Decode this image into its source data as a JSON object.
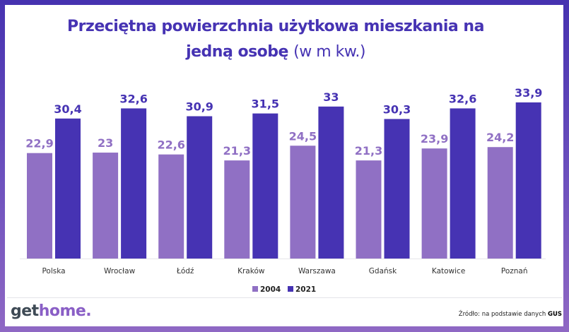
{
  "chart_data": {
    "type": "bar",
    "title": "Przeciętna powierzchnia użytkowa mieszkania na jedną osobę",
    "title_line1": "Przeciętna powierzchnia użytkowa mieszkania na",
    "title_line2": "jedną osobę",
    "title_unit": "(w m kw.)",
    "categories": [
      "Polska",
      "Wrocław",
      "Łódź",
      "Kraków",
      "Warszawa",
      "Gdańsk",
      "Katowice",
      "Poznań"
    ],
    "series": [
      {
        "name": "2004",
        "color": "#9070c4",
        "values": [
          22.9,
          23,
          22.6,
          21.3,
          24.5,
          21.3,
          23.9,
          24.2
        ],
        "labels": [
          "22,9",
          "23",
          "22,6",
          "21,3",
          "24,5",
          "21,3",
          "23,9",
          "24,2"
        ]
      },
      {
        "name": "2021",
        "color": "#4633b3",
        "values": [
          30.4,
          32.6,
          30.9,
          31.5,
          33,
          30.3,
          32.6,
          33.9
        ],
        "labels": [
          "30,4",
          "32,6",
          "30,9",
          "31,5",
          "33",
          "30,3",
          "32,6",
          "33,9"
        ]
      }
    ],
    "ylim": [
      0,
      35
    ],
    "grid": false,
    "legend_position": "bottom"
  },
  "footer": {
    "logo_part1": "get",
    "logo_part2": "home.",
    "source_prefix": "Źródło: na podstawie danych",
    "source_name": "GUS"
  }
}
